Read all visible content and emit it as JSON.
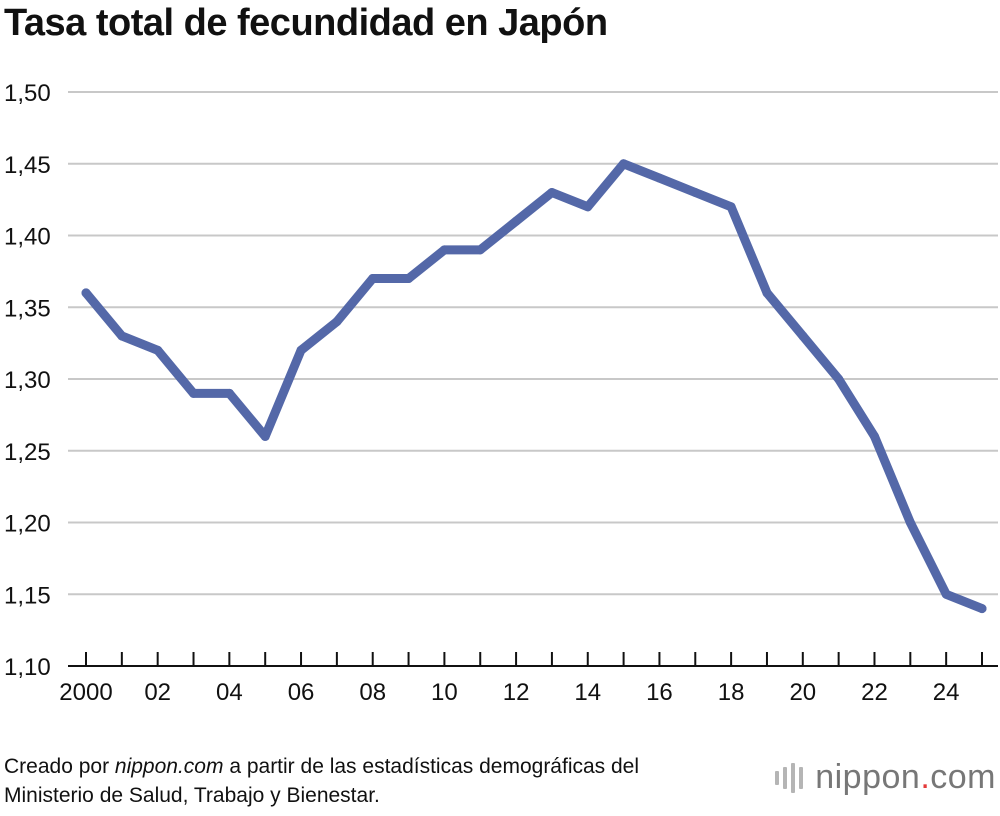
{
  "title": "Tasa total de fecundidad en Japón",
  "footer": {
    "line1_prefix": "Creado por ",
    "source_site": "nippon.com",
    "line1_suffix": " a partir de las estadísticas demográficas del",
    "line2": "Ministerio de Salud, Trabajo y Bienestar."
  },
  "logo": {
    "text_left": "nippon",
    "dot": ".",
    "text_right": "com"
  },
  "colors": {
    "line": "#5468a8",
    "grid": "#c8c8c8",
    "axis": "#111111",
    "logo_dot": "#e43a3a"
  },
  "chart_data": {
    "type": "line",
    "title": "Tasa total de fecundidad en Japón",
    "xlabel": "",
    "ylabel": "",
    "x": [
      2000,
      2001,
      2002,
      2003,
      2004,
      2005,
      2006,
      2007,
      2008,
      2009,
      2010,
      2011,
      2012,
      2013,
      2014,
      2015,
      2016,
      2017,
      2018,
      2019,
      2020,
      2021,
      2022,
      2023,
      2024,
      2025
    ],
    "series": [
      {
        "values": [
          1.36,
          1.33,
          1.32,
          1.29,
          1.29,
          1.26,
          1.32,
          1.34,
          1.37,
          1.37,
          1.39,
          1.39,
          1.41,
          1.43,
          1.42,
          1.45,
          1.44,
          1.43,
          1.42,
          1.36,
          1.33,
          1.3,
          1.26,
          1.2,
          1.15,
          1.14
        ]
      }
    ],
    "ylim": [
      1.1,
      1.5
    ],
    "y_ticks": [
      1.1,
      1.15,
      1.2,
      1.25,
      1.3,
      1.35,
      1.4,
      1.45,
      1.5
    ],
    "y_tick_labels": [
      "1,10",
      "1,15",
      "1,20",
      "1,25",
      "1,30",
      "1,35",
      "1,40",
      "1,45",
      "1,50"
    ],
    "x_tick_labels": [
      {
        "x": 2000,
        "label": "2000"
      },
      {
        "x": 2002,
        "label": "02"
      },
      {
        "x": 2004,
        "label": "04"
      },
      {
        "x": 2006,
        "label": "06"
      },
      {
        "x": 2008,
        "label": "08"
      },
      {
        "x": 2010,
        "label": "10"
      },
      {
        "x": 2012,
        "label": "12"
      },
      {
        "x": 2014,
        "label": "14"
      },
      {
        "x": 2016,
        "label": "16"
      },
      {
        "x": 2018,
        "label": "18"
      },
      {
        "x": 2020,
        "label": "20"
      },
      {
        "x": 2022,
        "label": "22"
      },
      {
        "x": 2024,
        "label": "24"
      }
    ],
    "grid": true,
    "legend": "none"
  }
}
